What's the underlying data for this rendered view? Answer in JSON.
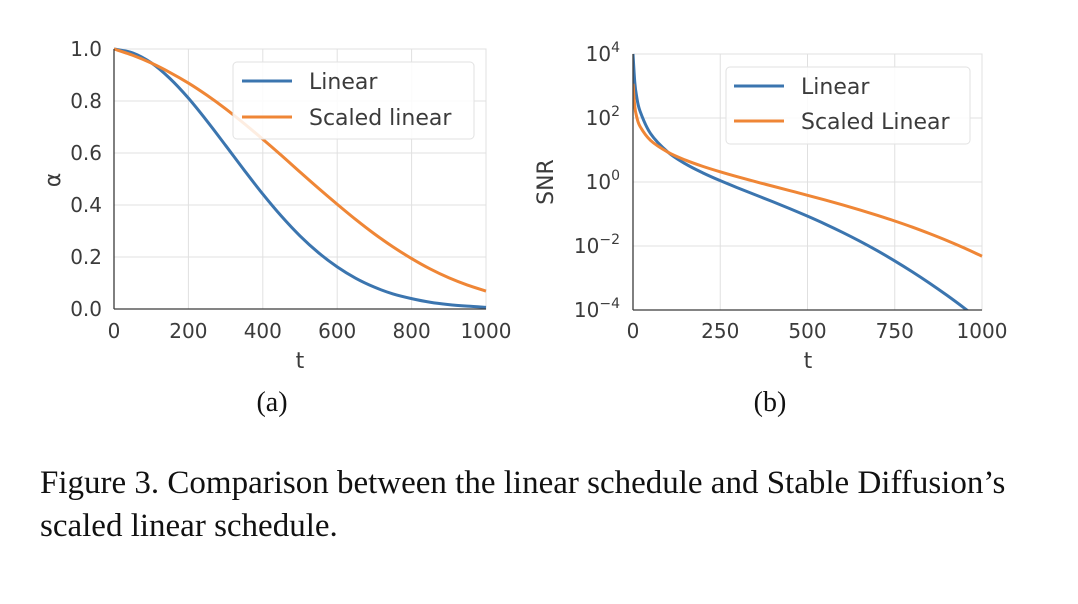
{
  "chart_data": [
    {
      "type": "line",
      "panel_label": "(a)",
      "xlabel": "t",
      "ylabel": "α",
      "xlim": [
        0,
        1000
      ],
      "ylim": [
        0,
        1
      ],
      "yscale": "linear",
      "grid": true,
      "legend_position": "top-right",
      "xticks": [
        "0",
        "200",
        "400",
        "600",
        "800",
        "1000"
      ],
      "yticks": [
        "0.0",
        "0.2",
        "0.4",
        "0.6",
        "0.8",
        "1.0"
      ],
      "x": [
        0,
        50,
        100,
        150,
        200,
        250,
        300,
        350,
        400,
        450,
        500,
        550,
        600,
        650,
        700,
        750,
        800,
        850,
        900,
        950,
        1000
      ],
      "series": [
        {
          "name": "Linear",
          "color": "#3b75af",
          "values": [
            1.0,
            0.985,
            0.947,
            0.887,
            0.811,
            0.723,
            0.629,
            0.534,
            0.442,
            0.357,
            0.281,
            0.216,
            0.162,
            0.118,
            0.084,
            0.058,
            0.04,
            0.026,
            0.017,
            0.011,
            0.0065
          ]
        },
        {
          "name": "Scaled linear",
          "color": "#ef8636",
          "values": [
            1.0,
            0.976,
            0.946,
            0.91,
            0.869,
            0.822,
            0.77,
            0.713,
            0.653,
            0.591,
            0.527,
            0.464,
            0.403,
            0.344,
            0.289,
            0.239,
            0.194,
            0.154,
            0.12,
            0.092,
            0.069
          ]
        }
      ]
    },
    {
      "type": "line",
      "panel_label": "(b)",
      "xlabel": "t",
      "ylabel": "SNR",
      "xlim": [
        0,
        1000
      ],
      "ylim": [
        0.0001,
        10000
      ],
      "yscale": "log",
      "grid": true,
      "legend_position": "top-right",
      "xticks": [
        "0",
        "250",
        "500",
        "750",
        "1000"
      ],
      "yticks": [
        {
          "base": "10",
          "exp": "4",
          "value": 10000
        },
        {
          "base": "10",
          "exp": "2",
          "value": 100
        },
        {
          "base": "10",
          "exp": "0",
          "value": 1
        },
        {
          "base": "10",
          "exp": "−2",
          "value": 0.01
        },
        {
          "base": "10",
          "exp": "−4",
          "value": 0.0001
        }
      ],
      "x": [
        0,
        5,
        10,
        20,
        50,
        100,
        150,
        200,
        250,
        300,
        350,
        400,
        450,
        500,
        550,
        600,
        650,
        700,
        750,
        800,
        850,
        900,
        950,
        1000
      ],
      "series": [
        {
          "name": "Linear",
          "color": "#3b75af",
          "values": [
            10000,
            1333,
            500,
            166,
            32.9,
            8.6,
            3.7,
            1.93,
            1.1,
            0.656,
            0.399,
            0.243,
            0.146,
            0.0856,
            0.0488,
            0.0268,
            0.01414,
            0.00713,
            0.00342,
            0.00157,
            0.000687,
            0.000286,
            0.000113,
            4.28e-05
          ]
        },
        {
          "name": "Scaled Linear",
          "color": "#ef8636",
          "values": [
            1175,
            233,
            116,
            55,
            20.1,
            8.55,
            4.85,
            3.08,
            2.08,
            1.45,
            1.03,
            0.743,
            0.535,
            0.385,
            0.2746,
            0.1936,
            0.1342,
            0.0911,
            0.0604,
            0.039,
            0.0243,
            0.01471,
            0.00856,
            0.00479
          ]
        }
      ]
    }
  ],
  "caption": "Figure 3. Comparison between the linear schedule and Stable Diffusion’s scaled linear schedule."
}
